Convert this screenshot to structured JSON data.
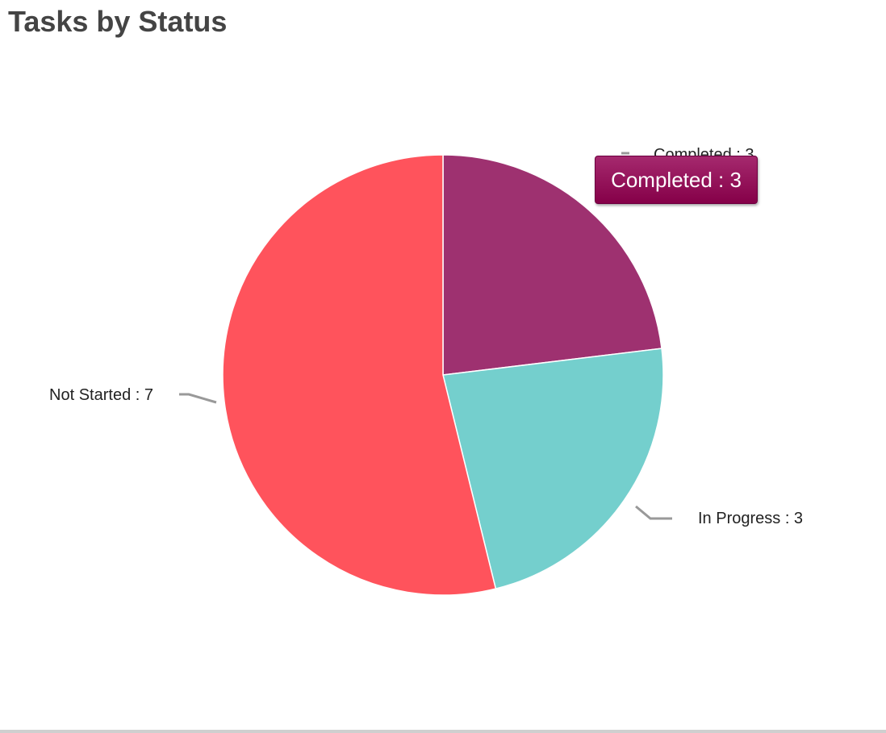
{
  "chart_data": {
    "type": "pie",
    "title": "Tasks by Status",
    "slices": [
      {
        "label": "Completed",
        "value": 3,
        "color": "#9e3170",
        "display": "Completed : 3"
      },
      {
        "label": "In Progress",
        "value": 3,
        "color": "#74cfcd",
        "display": "In Progress : 3"
      },
      {
        "label": "Not Started",
        "value": 7,
        "color": "#ff535c",
        "display": "Not Started : 7"
      }
    ]
  },
  "tooltip": {
    "text": "Completed : 3",
    "background": "#8f0a55"
  }
}
